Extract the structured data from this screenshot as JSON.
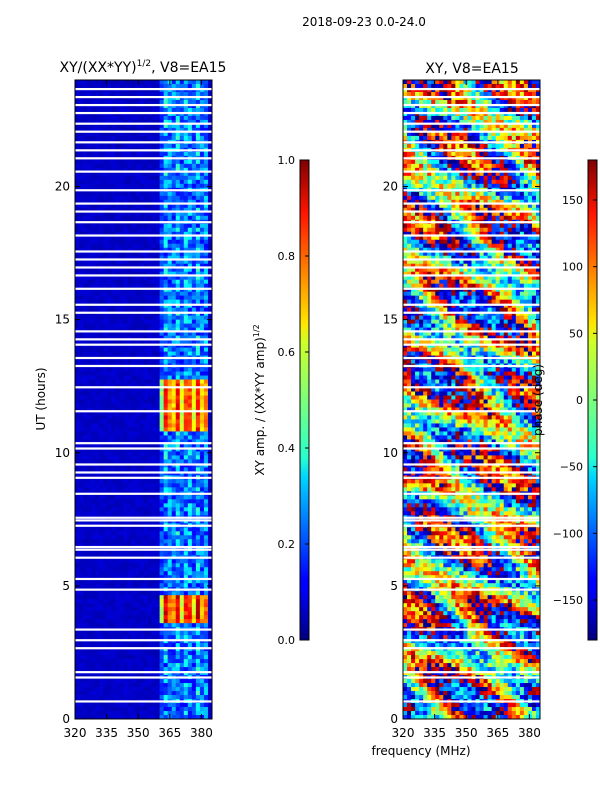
{
  "figure": {
    "suptitle": "2018-09-23 0.0-24.0",
    "shared_xlabel": "frequency (MHz)"
  },
  "chart_data": [
    {
      "type": "heatmap",
      "title": "XY/(XX*YY)",
      "title_sup": "1/2",
      "title_suffix": ", V8=EA15",
      "ylabel": "UT (hours)",
      "xlim": [
        320,
        385
      ],
      "ylim": [
        0,
        24
      ],
      "xticks": [
        320,
        335,
        350,
        365,
        380
      ],
      "yticks": [
        0,
        5,
        10,
        15,
        20
      ],
      "colormap": "jet",
      "colorbar": {
        "label": "XY amp. / (XX*YY amp)",
        "label_sup": "1/2",
        "range": [
          0.0,
          1.0
        ],
        "ticks": [
          "0.0",
          "0.2",
          "0.4",
          "0.6",
          "0.8",
          "1.0"
        ],
        "tick_values": [
          0.0,
          0.2,
          0.4,
          0.6,
          0.8,
          1.0
        ]
      },
      "background_value": 0.05,
      "bright_channel_range_mhz": [
        361,
        384
      ],
      "bright_events": [
        {
          "ut": [
            3.6,
            4.6
          ],
          "peak": 0.85
        },
        {
          "ut": [
            10.8,
            12.8
          ],
          "peak": 0.8
        }
      ],
      "gap_rows_ut": [
        0.7,
        1.6,
        1.8,
        2.7,
        3.0,
        3.4,
        4.9,
        5.3,
        6.1,
        6.4,
        6.5,
        7.3,
        7.5,
        7.6,
        8.5,
        9.1,
        9.3,
        9.6,
        10.2,
        10.4,
        11.6,
        12.5,
        13.3,
        13.6,
        14.1,
        14.3,
        14.6,
        15.3,
        15.6,
        16.2,
        16.7,
        17.0,
        17.3,
        17.6,
        18.2,
        18.7,
        19.1,
        19.4,
        19.9,
        20.6,
        21.1,
        21.4,
        21.7,
        22.1,
        22.4,
        22.8,
        23.1,
        23.4,
        23.7
      ]
    },
    {
      "type": "heatmap",
      "title": "XY, V8=EA15",
      "ylabel": "",
      "xlim": [
        320,
        385
      ],
      "ylim": [
        0,
        24
      ],
      "xticks": [
        320,
        335,
        350,
        365,
        380
      ],
      "yticks": [
        0,
        5,
        10,
        15,
        20
      ],
      "colormap": "jet",
      "colorbar": {
        "label": "phase (deg)",
        "range": [
          -180,
          180
        ],
        "ticks": [
          "−150",
          "−100",
          "−50",
          "0",
          "50",
          "100",
          "150"
        ],
        "tick_values": [
          -150,
          -100,
          -50,
          0,
          50,
          100,
          150
        ]
      },
      "gap_rows_ut": [
        0.7,
        1.6,
        1.8,
        2.7,
        3.0,
        3.4,
        4.9,
        5.3,
        6.1,
        6.4,
        6.5,
        7.3,
        7.5,
        7.6,
        8.5,
        9.1,
        9.3,
        9.6,
        10.2,
        10.4,
        11.6,
        12.5,
        13.3,
        13.6,
        14.1,
        14.3,
        14.6,
        15.3,
        15.6,
        16.2,
        16.7,
        17.0,
        17.3,
        17.6,
        18.2,
        18.7,
        19.1,
        19.4,
        19.9,
        20.6,
        21.1,
        21.4,
        21.7,
        22.1,
        22.4,
        22.8,
        23.1,
        23.4,
        23.7
      ]
    }
  ]
}
